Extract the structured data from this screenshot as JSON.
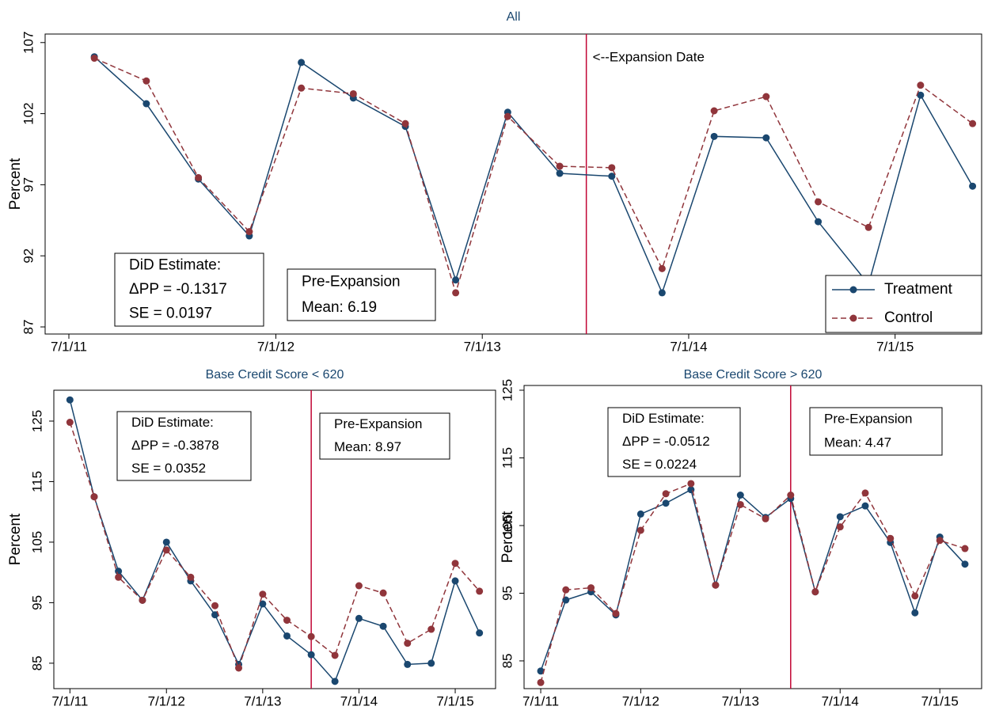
{
  "chart_data": [
    {
      "type": "line",
      "title": "All",
      "y_label": "Percent",
      "x": [
        "8/15/11",
        "11/15/11",
        "2/15/12",
        "5/15/12",
        "8/15/12",
        "11/15/12",
        "2/15/13",
        "5/15/13",
        "8/15/13",
        "11/15/13",
        "2/15/14",
        "5/15/14",
        "8/15/14",
        "11/15/14",
        "2/15/15",
        "5/15/15",
        "8/15/15",
        "11/15/15"
      ],
      "series": [
        {
          "name": "Treatment",
          "color": "#1a476f",
          "dash": false,
          "values": [
            106,
            102.7,
            97.4,
            93.4,
            105.6,
            103.1,
            101.1,
            90.3,
            102.1,
            97.8,
            97.6,
            89.4,
            100.4,
            100.3,
            94.4,
            90,
            103.3,
            96.9
          ]
        },
        {
          "name": "Control",
          "color": "#90353b",
          "dash": true,
          "values": [
            105.9,
            104.3,
            97.5,
            93.7,
            103.8,
            103.4,
            101.3,
            89.4,
            101.8,
            98.3,
            98.2,
            91.1,
            102.2,
            103.2,
            95.8,
            94,
            104,
            101.3
          ]
        }
      ],
      "xlim": [
        "5/20/11",
        "12/1/15"
      ],
      "xticks": [
        "7/1/11",
        "7/1/12",
        "7/1/13",
        "7/1/14",
        "7/1/15"
      ],
      "ylim": [
        86.5,
        107.6
      ],
      "yticks": [
        87,
        92,
        97,
        102,
        107
      ],
      "vline": {
        "x": "1/1/14",
        "color": "#c10534",
        "label": "<--Expansion Date"
      },
      "annotations": [
        [
          "DiD Estimate:",
          "ΔPP = -0.1317",
          "SE  =  0.0197"
        ],
        [
          "Pre-Expansion",
          "Mean:   6.19"
        ]
      ],
      "legend": "lower right"
    },
    {
      "type": "line",
      "title": "Base Credit Score < 620",
      "y_label": "Percent",
      "x": [
        "7/1/11",
        "10/1/11",
        "1/1/12",
        "4/1/12",
        "7/1/12",
        "10/1/12",
        "1/1/13",
        "4/1/13",
        "7/1/13",
        "10/1/13",
        "1/1/14",
        "4/1/14",
        "7/1/14",
        "10/1/14",
        "1/1/15",
        "4/1/15",
        "7/1/15",
        "10/1/15"
      ],
      "series": [
        {
          "color": "#1a476f",
          "dash": false,
          "values": [
            128.5,
            112.5,
            100.2,
            95.4,
            105,
            98.6,
            93,
            84.8,
            94.8,
            89.5,
            86.4,
            82,
            92.4,
            91.1,
            84.8,
            85,
            98.6,
            90
          ]
        },
        {
          "color": "#90353b",
          "dash": true,
          "values": [
            124.8,
            112.5,
            99.2,
            95.4,
            103.7,
            99.2,
            94.5,
            84.2,
            96.4,
            92.1,
            89.4,
            86.3,
            97.8,
            96.6,
            88.3,
            90.6,
            101.5,
            96.9
          ]
        }
      ],
      "xlim": [
        "5/1/11",
        "12/1/15"
      ],
      "xticks": [
        "7/1/11",
        "7/1/12",
        "7/1/13",
        "7/1/14",
        "7/1/15"
      ],
      "ylim": [
        80.8,
        130.1
      ],
      "yticks": [
        85,
        95,
        105,
        115,
        125
      ],
      "vline": {
        "x": "1/1/14",
        "color": "#c10534"
      },
      "annotations": [
        [
          "DiD Estimate:",
          "ΔPP = -0.3878",
          "SE   =  0.0352"
        ],
        [
          "Pre-Expansion",
          "Mean:   8.97"
        ]
      ]
    },
    {
      "type": "line",
      "title": "Base Credit Score > 620",
      "y_label": "Percent",
      "x": [
        "7/1/11",
        "10/1/11",
        "1/1/12",
        "4/1/12",
        "7/1/12",
        "10/1/12",
        "1/1/13",
        "4/1/13",
        "7/1/13",
        "10/1/13",
        "1/1/14",
        "4/1/14",
        "7/1/14",
        "10/1/14",
        "1/1/15",
        "4/1/15",
        "7/1/15",
        "10/1/15"
      ],
      "series": [
        {
          "color": "#1a476f",
          "dash": false,
          "values": [
            83.5,
            94,
            95.2,
            91.8,
            106.7,
            108.3,
            110.3,
            96.2,
            109.5,
            106.2,
            109,
            95.2,
            106.3,
            107.9,
            102.5,
            92.1,
            103.3,
            99.3
          ]
        },
        {
          "color": "#90353b",
          "dash": true,
          "values": [
            81.8,
            95.5,
            95.8,
            92,
            104.3,
            109.7,
            111.2,
            96.2,
            108.1,
            106,
            109.5,
            95.2,
            104.8,
            109.8,
            103.1,
            94.6,
            102.8,
            101.6
          ]
        }
      ],
      "xlim": [
        "5/1/11",
        "12/1/15"
      ],
      "xticks": [
        "7/1/11",
        "7/1/12",
        "7/1/13",
        "7/1/14",
        "7/1/15"
      ],
      "ylim": [
        80.9,
        125.7
      ],
      "yticks": [
        85,
        95,
        105,
        115,
        125
      ],
      "vline": {
        "x": "1/1/14",
        "color": "#c10534"
      },
      "annotations": [
        [
          "DiD Estimate:",
          "ΔPP = -0.0512",
          "SE   =  0.0224"
        ],
        [
          "Pre-Expansion",
          "Mean:   4.47"
        ]
      ]
    }
  ]
}
